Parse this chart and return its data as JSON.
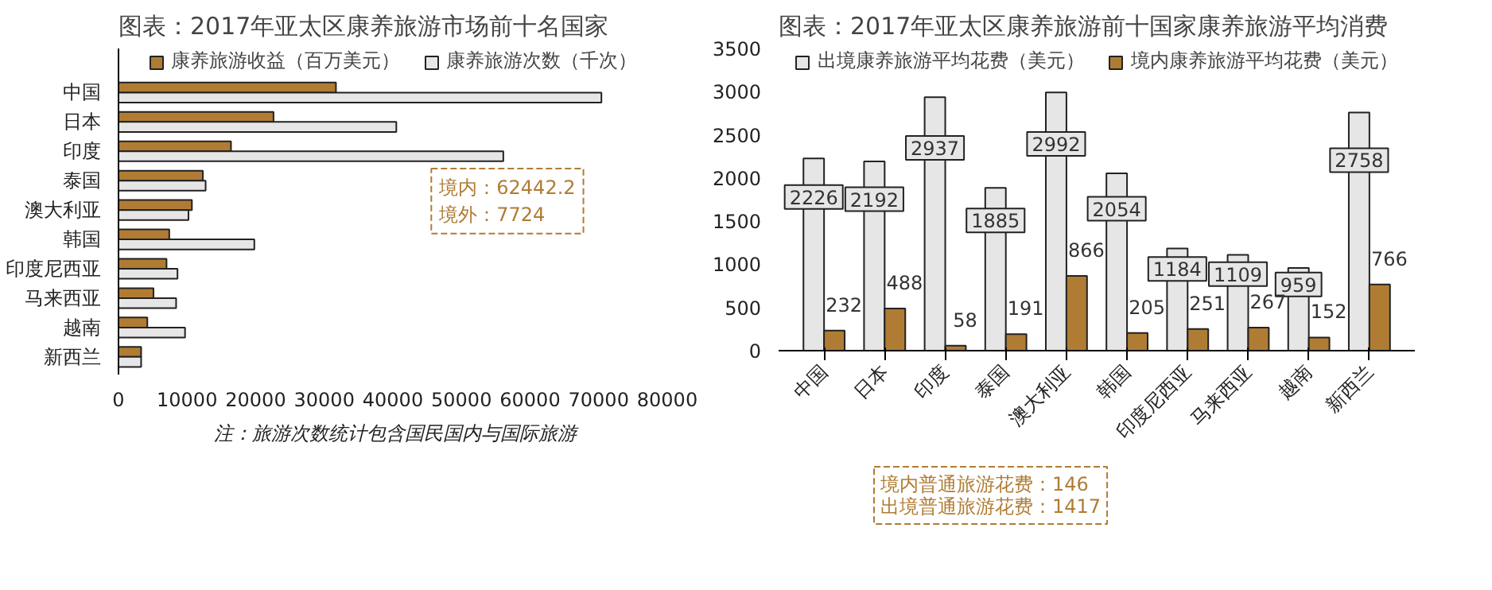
{
  "chart_data": [
    {
      "type": "bar",
      "orientation": "horizontal",
      "title": "图表：2017年亚太区康养旅游市场前十名国家",
      "categories": [
        "中国",
        "日本",
        "印度",
        "泰国",
        "澳大利亚",
        "韩国",
        "印度尼西亚",
        "马来西亚",
        "越南",
        "新西兰"
      ],
      "series": [
        {
          "name": "康养旅游收益（百万美元）",
          "color": "#b07c34",
          "values": [
            31700,
            22600,
            16400,
            12300,
            10700,
            7400,
            7000,
            5100,
            4200,
            3300
          ]
        },
        {
          "name": "康养旅游次数（千次）",
          "color": "#e6e6e6",
          "values": [
            70400,
            40500,
            56100,
            12700,
            10200,
            19800,
            8600,
            8400,
            9700,
            3300
          ]
        }
      ],
      "xlim": [
        0,
        80000
      ],
      "xticks": [
        0,
        10000,
        20000,
        30000,
        40000,
        50000,
        60000,
        70000,
        80000
      ],
      "legend": "top",
      "grid": false,
      "annotations": [
        "境内：62442.2\n境外：7724",
        "注：旅游次数统计包含国民国内与国际旅游"
      ]
    },
    {
      "type": "bar",
      "title": "图表：2017年亚太区康养旅游前十国家康养旅游平均消费",
      "categories": [
        "中国",
        "日本",
        "印度",
        "泰国",
        "澳大利亚",
        "韩国",
        "印度尼西亚",
        "马来西亚",
        "越南",
        "新西兰"
      ],
      "series": [
        {
          "name": "出境康养旅游平均花费（美元）",
          "color": "#e6e6e6",
          "values": [
            2226,
            2192,
            2937,
            1885,
            2992,
            2054,
            1184,
            1109,
            959,
            2758
          ]
        },
        {
          "name": "境内康养旅游平均花费（美元）",
          "color": "#b07c34",
          "values": [
            232,
            488,
            58,
            191,
            866,
            205,
            251,
            267,
            152,
            766
          ]
        }
      ],
      "ylim": [
        0,
        3500
      ],
      "yticks": [
        0,
        500,
        1000,
        1500,
        2000,
        2500,
        3000,
        3500
      ],
      "legend": "top",
      "grid": false,
      "data_labels": true,
      "annotations": [
        "境内普通旅游花费：146\n出境普通旅游花费：1417"
      ]
    }
  ]
}
